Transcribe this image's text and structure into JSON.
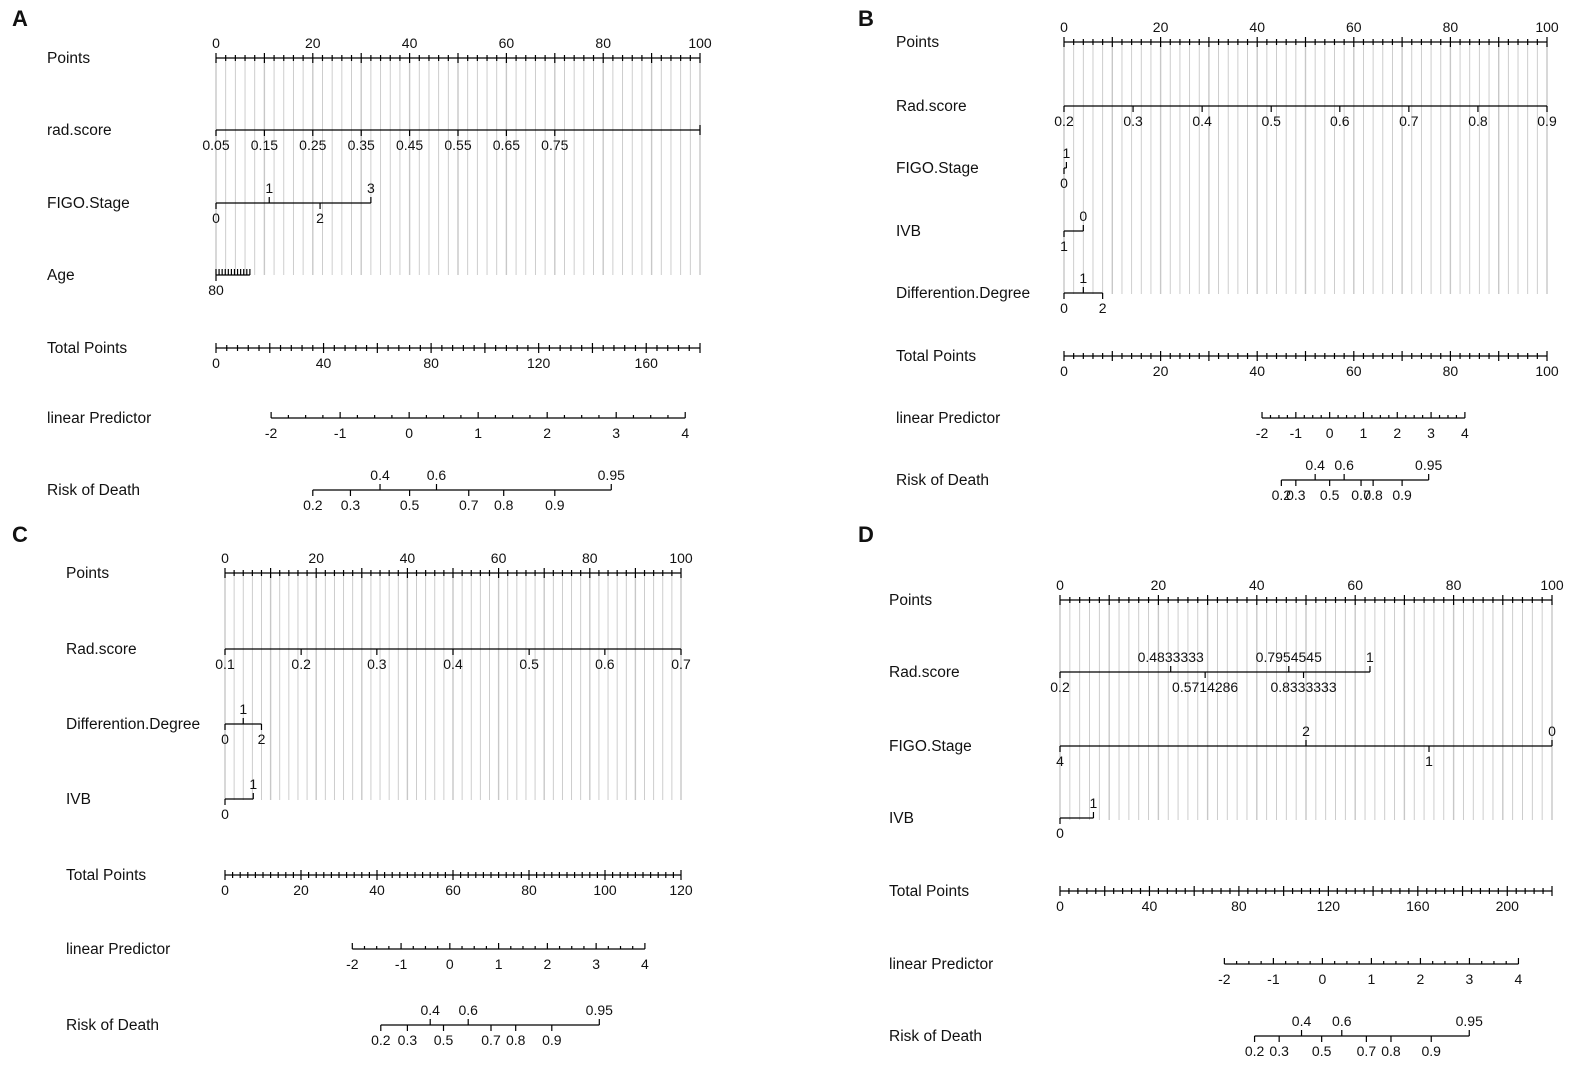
{
  "figure": {
    "colors": {
      "axis": "#000000",
      "text": "#111111",
      "gridline": "#c8c8c8",
      "background": "#ffffff"
    }
  },
  "chart_data": [
    {
      "type": "nomogram",
      "panel_label": "A",
      "rows": [
        {
          "label": "Points",
          "kind": "points",
          "min": 0,
          "max": 100,
          "tick_labels": [
            "0",
            "20",
            "40",
            "60",
            "80",
            "100"
          ],
          "tick_values": [
            0,
            20,
            40,
            60,
            80,
            100
          ]
        },
        {
          "label": "rad.score",
          "kind": "variable",
          "tick_labels": [
            "0.05",
            "0.15",
            "0.25",
            "0.35",
            "0.45",
            "0.55",
            "0.65",
            "0.75"
          ],
          "tick_points": [
            0,
            10,
            20,
            30,
            40,
            50,
            60,
            70
          ],
          "end_points": 100,
          "label_side": "below"
        },
        {
          "label": "FIGO.Stage",
          "kind": "variable",
          "tick_labels": [
            "0",
            "1",
            "2",
            "3"
          ],
          "tick_points": [
            0,
            11,
            21.5,
            32
          ],
          "label_sides": [
            "below",
            "above",
            "below",
            "above"
          ]
        },
        {
          "label": "Age",
          "kind": "variable",
          "tick_labels": [
            "80"
          ],
          "tick_points": [
            0
          ],
          "label_sides": [
            "below"
          ],
          "compressed_ticks": {
            "count": 12,
            "start_points": 0,
            "end_points": 7
          }
        },
        {
          "label": "Total Points",
          "kind": "points",
          "min": 0,
          "max": 180,
          "tick_labels": [
            "0",
            "40",
            "80",
            "120",
            "160"
          ],
          "tick_values": [
            0,
            40,
            80,
            120,
            160
          ]
        },
        {
          "label": "linear Predictor",
          "kind": "scale",
          "tick_labels": [
            "-2",
            "-1",
            "0",
            "1",
            "2",
            "3",
            "4"
          ],
          "tick_values": [
            -2,
            -1,
            0,
            1,
            2,
            3,
            4
          ],
          "total_points_at_min": 20.5,
          "total_points_at_max": 174.5
        },
        {
          "label": "Risk of Death",
          "kind": "scale",
          "tick_labels": [
            "0.2",
            "0.3",
            "0.4",
            "0.5",
            "0.6",
            "0.7",
            "0.8",
            "0.9",
            "0.95"
          ],
          "tick_values": [
            0.2,
            0.3,
            0.4,
            0.5,
            0.6,
            0.7,
            0.8,
            0.9,
            0.95
          ],
          "label_sides": [
            "below",
            "below",
            "above",
            "below",
            "above",
            "below",
            "below",
            "below",
            "above"
          ],
          "total_points_at_ticks": [
            36,
            50,
            61,
            72,
            82,
            94,
            107,
            126,
            147
          ]
        }
      ]
    },
    {
      "type": "nomogram",
      "panel_label": "B",
      "rows": [
        {
          "label": "Points",
          "kind": "points",
          "min": 0,
          "max": 100,
          "tick_labels": [
            "0",
            "20",
            "40",
            "60",
            "80",
            "100"
          ],
          "tick_values": [
            0,
            20,
            40,
            60,
            80,
            100
          ]
        },
        {
          "label": "Rad.score",
          "kind": "variable",
          "tick_labels": [
            "0.2",
            "0.3",
            "0.4",
            "0.5",
            "0.6",
            "0.7",
            "0.8",
            "0.9"
          ],
          "tick_points": [
            0,
            14.3,
            28.6,
            42.9,
            57.1,
            71.4,
            85.7,
            100
          ],
          "label_side": "below"
        },
        {
          "label": "FIGO.Stage",
          "kind": "variable",
          "tick_labels": [
            "0",
            "1"
          ],
          "tick_points": [
            0,
            0.5
          ],
          "label_sides": [
            "below",
            "above"
          ]
        },
        {
          "label": "IVB",
          "kind": "variable",
          "tick_labels": [
            "1",
            "0"
          ],
          "tick_points": [
            0,
            4
          ],
          "label_sides": [
            "below",
            "above"
          ]
        },
        {
          "label": "Differention.Degree",
          "kind": "variable",
          "tick_labels": [
            "0",
            "1",
            "2"
          ],
          "tick_points": [
            0,
            4,
            8
          ],
          "label_sides": [
            "below",
            "above",
            "below"
          ]
        },
        {
          "label": "Total Points",
          "kind": "points",
          "min": 0,
          "max": 100,
          "tick_labels": [
            "0",
            "20",
            "40",
            "60",
            "80",
            "100"
          ],
          "tick_values": [
            0,
            20,
            40,
            60,
            80,
            100
          ]
        },
        {
          "label": "linear Predictor",
          "kind": "scale",
          "tick_labels": [
            "-2",
            "-1",
            "0",
            "1",
            "2",
            "3",
            "4"
          ],
          "tick_values": [
            -2,
            -1,
            0,
            1,
            2,
            3,
            4
          ],
          "total_points_at_min": 41,
          "total_points_at_max": 83
        },
        {
          "label": "Risk of Death",
          "kind": "scale",
          "tick_labels": [
            "0.2",
            "0.3",
            "0.4",
            "0.5",
            "0.6",
            "0.7",
            "0.8",
            "0.9",
            "0.95"
          ],
          "tick_values": [
            0.2,
            0.3,
            0.4,
            0.5,
            0.6,
            0.7,
            0.8,
            0.9,
            0.95
          ],
          "label_sides": [
            "below",
            "below",
            "above",
            "below",
            "above",
            "below",
            "below",
            "below",
            "above"
          ],
          "total_points_at_ticks": [
            45,
            48,
            52,
            55,
            58,
            61.5,
            64,
            70,
            75.5
          ]
        }
      ]
    },
    {
      "type": "nomogram",
      "panel_label": "C",
      "rows": [
        {
          "label": "Points",
          "kind": "points",
          "min": 0,
          "max": 100,
          "tick_labels": [
            "0",
            "20",
            "40",
            "60",
            "80",
            "100"
          ],
          "tick_values": [
            0,
            20,
            40,
            60,
            80,
            100
          ]
        },
        {
          "label": "Rad.score",
          "kind": "variable",
          "tick_labels": [
            "0.1",
            "0.2",
            "0.3",
            "0.4",
            "0.5",
            "0.6",
            "0.7"
          ],
          "tick_points": [
            0,
            16.7,
            33.3,
            50,
            66.7,
            83.3,
            100
          ],
          "label_side": "below"
        },
        {
          "label": "Differention.Degree",
          "kind": "variable",
          "tick_labels": [
            "0",
            "1",
            "2"
          ],
          "tick_points": [
            0,
            4,
            8
          ],
          "label_sides": [
            "below",
            "above",
            "below"
          ]
        },
        {
          "label": "IVB",
          "kind": "variable",
          "tick_labels": [
            "0",
            "1"
          ],
          "tick_points": [
            0,
            6.2
          ],
          "label_sides": [
            "below",
            "above"
          ]
        },
        {
          "label": "Total Points",
          "kind": "points",
          "min": 0,
          "max": 120,
          "tick_labels": [
            "0",
            "20",
            "40",
            "60",
            "80",
            "100",
            "120"
          ],
          "tick_values": [
            0,
            20,
            40,
            60,
            80,
            100,
            120
          ]
        },
        {
          "label": "linear Predictor",
          "kind": "scale",
          "tick_labels": [
            "-2",
            "-1",
            "0",
            "1",
            "2",
            "3",
            "4"
          ],
          "tick_values": [
            -2,
            -1,
            0,
            1,
            2,
            3,
            4
          ],
          "total_points_at_min": 33.5,
          "total_points_at_max": 110.5
        },
        {
          "label": "Risk of Death",
          "kind": "scale",
          "tick_labels": [
            "0.2",
            "0.3",
            "0.4",
            "0.5",
            "0.6",
            "0.7",
            "0.8",
            "0.9",
            "0.95"
          ],
          "tick_values": [
            0.2,
            0.3,
            0.4,
            0.5,
            0.6,
            0.7,
            0.8,
            0.9,
            0.95
          ],
          "label_sides": [
            "below",
            "below",
            "above",
            "below",
            "above",
            "below",
            "below",
            "below",
            "above"
          ],
          "total_points_at_ticks": [
            41,
            48,
            54,
            57.5,
            64,
            70,
            76.5,
            86,
            98.5
          ]
        }
      ]
    },
    {
      "type": "nomogram",
      "panel_label": "D",
      "rows": [
        {
          "label": "Points",
          "kind": "points",
          "min": 0,
          "max": 100,
          "tick_labels": [
            "0",
            "20",
            "40",
            "60",
            "80",
            "100"
          ],
          "tick_values": [
            0,
            20,
            40,
            60,
            80,
            100
          ]
        },
        {
          "label": "Rad.score",
          "kind": "variable",
          "tick_labels": [
            "0.2",
            "0.4833333",
            "0.5714286",
            "0.7954545",
            "0.8333333",
            "1"
          ],
          "tick_points": [
            0,
            22.5,
            29.5,
            46.5,
            49.5,
            63
          ],
          "label_sides": [
            "below",
            "above",
            "below",
            "above",
            "below",
            "above"
          ]
        },
        {
          "label": "FIGO.Stage",
          "kind": "variable",
          "tick_labels": [
            "4",
            "2",
            "1",
            "0"
          ],
          "tick_points": [
            0,
            50,
            75,
            100
          ],
          "label_sides": [
            "below",
            "above",
            "below",
            "above"
          ]
        },
        {
          "label": "IVB",
          "kind": "variable",
          "tick_labels": [
            "0",
            "1"
          ],
          "tick_points": [
            0,
            6.8
          ],
          "label_sides": [
            "below",
            "above"
          ]
        },
        {
          "label": "Total Points",
          "kind": "points",
          "min": 0,
          "max": 220,
          "tick_labels": [
            "0",
            "40",
            "80",
            "120",
            "160",
            "200"
          ],
          "tick_values": [
            0,
            40,
            80,
            120,
            160,
            200
          ]
        },
        {
          "label": "linear Predictor",
          "kind": "scale",
          "tick_labels": [
            "-2",
            "-1",
            "0",
            "1",
            "2",
            "3",
            "4"
          ],
          "tick_values": [
            -2,
            -1,
            0,
            1,
            2,
            3,
            4
          ],
          "total_points_at_min": 73.5,
          "total_points_at_max": 205
        },
        {
          "label": "Risk of Death",
          "kind": "scale",
          "tick_labels": [
            "0.2",
            "0.3",
            "0.4",
            "0.5",
            "0.6",
            "0.7",
            "0.8",
            "0.9",
            "0.95"
          ],
          "tick_values": [
            0.2,
            0.3,
            0.4,
            0.5,
            0.6,
            0.7,
            0.8,
            0.9,
            0.95
          ],
          "label_sides": [
            "below",
            "below",
            "above",
            "below",
            "above",
            "below",
            "below",
            "below",
            "above"
          ],
          "total_points_at_ticks": [
            87,
            98,
            108,
            117,
            126,
            137,
            148,
            166,
            183
          ]
        }
      ]
    }
  ]
}
